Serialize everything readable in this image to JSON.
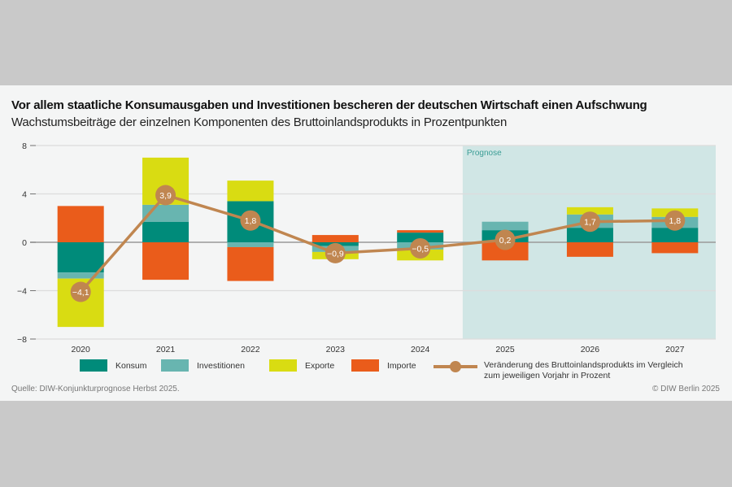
{
  "title": "Vor allem staatliche Konsumausgaben und Investitionen bescheren der deutschen Wirtschaft einen Aufschwung",
  "subtitle": "Wachstumsbeiträge der einzelnen Komponenten des Bruttoinlandsprodukts in Prozentpunkten",
  "source": "Quelle: DIW-Konjunkturprognose Herbst 2025.",
  "copyright": "© DIW Berlin 2025",
  "chart_data": {
    "type": "bar",
    "stacked": true,
    "categories": [
      "2020",
      "2021",
      "2022",
      "2023",
      "2024",
      "2025",
      "2026",
      "2027"
    ],
    "ylim": [
      -8,
      8
    ],
    "yticks": [
      "8",
      "4",
      "0",
      "−4",
      "−8"
    ],
    "grid": true,
    "forecast_label": "Prognose",
    "forecast_from": "2025",
    "series": [
      {
        "name": "Konsum",
        "color": "#008b7a",
        "values": [
          -2.5,
          1.7,
          3.4,
          -0.3,
          0.8,
          1.0,
          1.2,
          1.2
        ]
      },
      {
        "name": "Investitionen",
        "color": "#68b5b0",
        "values": [
          -0.5,
          1.4,
          -0.4,
          -0.5,
          -0.6,
          0.7,
          1.1,
          0.9
        ]
      },
      {
        "name": "Exporte",
        "color": "#d9dc12",
        "values": [
          -4.0,
          3.9,
          1.7,
          -0.6,
          -0.9,
          0.0,
          0.6,
          0.7
        ]
      },
      {
        "name": "Importe",
        "color": "#ea5c1b",
        "values": [
          3.0,
          -3.1,
          -2.8,
          0.6,
          0.2,
          -1.5,
          -1.2,
          -0.9
        ]
      }
    ],
    "line": {
      "name": "Veränderung des Bruttoinlandsprodukts im Vergleich zum jeweiligen Vorjahr in Prozent",
      "name_line1": "Veränderung des Bruttoinlandsprodukts im Vergleich",
      "name_line2": "zum jeweiligen Vorjahr in Prozent",
      "color": "#c08650",
      "values": [
        -4.1,
        3.9,
        1.8,
        -0.9,
        -0.5,
        0.2,
        1.7,
        1.8
      ],
      "labels": [
        "−4,1",
        "3,9",
        "1,8",
        "−0,9",
        "−0,5",
        "0,2",
        "1,7",
        "1,8"
      ]
    }
  }
}
